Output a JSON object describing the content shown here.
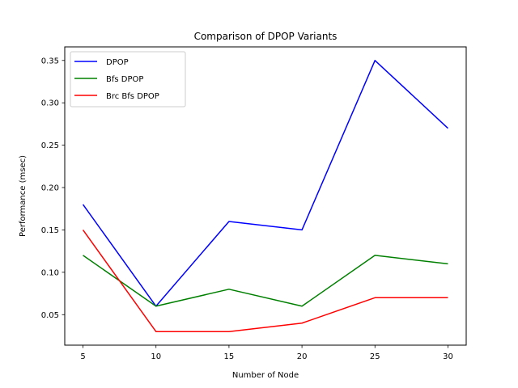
{
  "chart_data": {
    "type": "line",
    "title": "Comparison of DPOP Variants",
    "xlabel": "Number of Node",
    "ylabel": "Performance (msec)",
    "x": [
      5,
      10,
      15,
      20,
      25,
      30
    ],
    "xlim": [
      3.75,
      31.25
    ],
    "ylim": [
      0.014,
      0.366
    ],
    "xticks": [
      5,
      10,
      15,
      20,
      25,
      30
    ],
    "yticks": [
      0.05,
      0.1,
      0.15,
      0.2,
      0.25,
      0.3,
      0.35
    ],
    "ytick_labels": [
      "0.05",
      "0.10",
      "0.15",
      "0.20",
      "0.25",
      "0.30",
      "0.35"
    ],
    "grid": false,
    "legend_position": "top-left",
    "series": [
      {
        "name": "DPOP",
        "color": "#0000ff",
        "values": [
          0.18,
          0.06,
          0.16,
          0.15,
          0.35,
          0.27
        ]
      },
      {
        "name": "Bfs DPOP",
        "color": "#008000",
        "values": [
          0.12,
          0.06,
          0.08,
          0.06,
          0.12,
          0.11
        ]
      },
      {
        "name": "Brc Bfs DPOP",
        "color": "#ff0000",
        "values": [
          0.15,
          0.03,
          0.03,
          0.04,
          0.07,
          0.07
        ]
      }
    ]
  }
}
